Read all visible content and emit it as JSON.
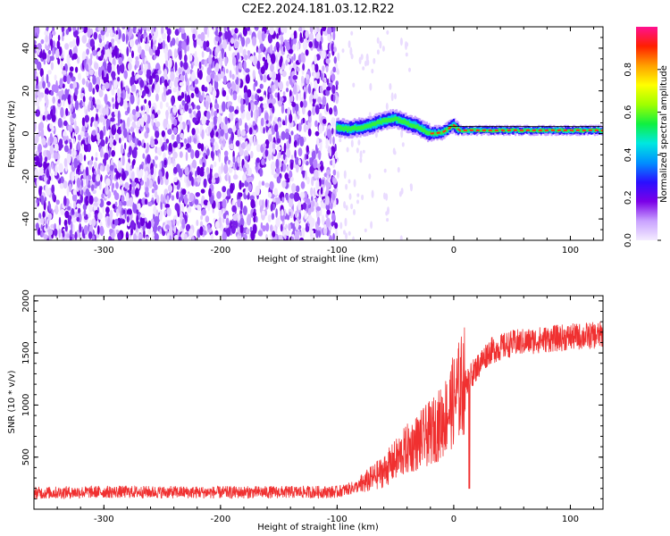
{
  "title": "C2E2.2024.181.03.12.R22",
  "chart_data": [
    {
      "type": "heatmap",
      "xlabel": "Height of straight line (km)",
      "ylabel": "Frequency (Hz)",
      "xlim": [
        -360,
        128
      ],
      "ylim": [
        -50,
        50
      ],
      "xticks": [
        -300,
        -200,
        -100,
        0,
        100
      ],
      "yticks": [
        -40,
        -20,
        0,
        20,
        40
      ],
      "xtick_labels": [
        "-300",
        "-200",
        "-100",
        "0",
        "100"
      ],
      "ytick_labels": [
        "-40",
        "-20",
        "0",
        "20",
        "40"
      ],
      "noise_region_x": [
        -360,
        -100
      ],
      "signal_track": {
        "x": [
          -100,
          -90,
          -80,
          -70,
          -60,
          -50,
          -40,
          -30,
          -20,
          -10,
          -5,
          0,
          5,
          10,
          20,
          30,
          40,
          50,
          60,
          70,
          80,
          90,
          100,
          110,
          128
        ],
        "freq": [
          3,
          2,
          3,
          4,
          6,
          7,
          5,
          3,
          0,
          0.5,
          2,
          4,
          1.5,
          1.5,
          1.5,
          1.5,
          1.5,
          1.5,
          1.5,
          1.5,
          1.5,
          1.5,
          1.5,
          1.5,
          1.5
        ]
      },
      "grid": false
    },
    {
      "type": "line",
      "xlabel": "Height of straight line (km)",
      "ylabel": "SNR (10 * v/v)",
      "xlim": [
        -360,
        128
      ],
      "ylim": [
        0,
        2050
      ],
      "xticks": [
        -300,
        -200,
        -100,
        0,
        100
      ],
      "yticks": [
        500,
        1000,
        1500,
        2000
      ],
      "xtick_labels": [
        "-300",
        "-200",
        "-100",
        "0",
        "100"
      ],
      "ytick_labels": [
        "500",
        "1000",
        "1500",
        "2000"
      ],
      "series": [
        {
          "color": "#f03030",
          "x": [
            -360,
            -300,
            -200,
            -100,
            -80,
            -60,
            -40,
            -20,
            -10,
            0,
            10,
            20,
            30,
            50,
            80,
            100,
            128
          ],
          "values": [
            150,
            160,
            155,
            160,
            220,
            350,
            550,
            700,
            800,
            1000,
            1200,
            1350,
            1500,
            1580,
            1620,
            1640,
            1660
          ]
        }
      ],
      "grid": false
    }
  ],
  "colorbar": {
    "label": "Normalized spectral amplitude",
    "ticks": [
      "0.0",
      "0.2",
      "0.4",
      "0.6",
      "0.8"
    ],
    "tick_values": [
      0.0,
      0.2,
      0.4,
      0.6,
      0.8
    ],
    "range": [
      0,
      1
    ],
    "colors": [
      "#f4ecff",
      "#c9a2ff",
      "#7b00e8",
      "#2a10ff",
      "#0090ff",
      "#00e8e0",
      "#10f040",
      "#a0ff00",
      "#ffff00",
      "#ffa000",
      "#ff2000",
      "#ff1090"
    ]
  }
}
